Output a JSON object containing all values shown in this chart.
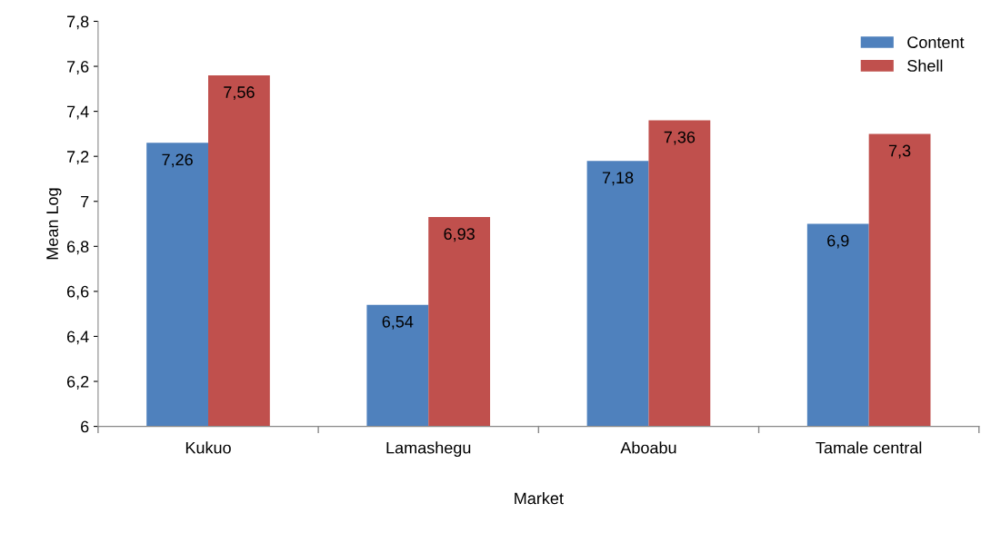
{
  "chart_data": {
    "type": "bar",
    "xlabel": "Market",
    "ylabel": "Mean Log",
    "categories": [
      "Kukuo",
      "Lamashegu",
      "Aboabu",
      "Tamale central"
    ],
    "series": [
      {
        "name": "Content",
        "color": "#4f81bd",
        "values": [
          7.26,
          6.54,
          7.18,
          6.9
        ],
        "value_labels": [
          "7,26",
          "6,54",
          "7,18",
          "6,9"
        ]
      },
      {
        "name": "Shell",
        "color": "#c0504d",
        "values": [
          7.56,
          6.93,
          7.36,
          7.3
        ],
        "value_labels": [
          "7,56",
          "6,93",
          "7,36",
          "7,3"
        ]
      }
    ],
    "ylim": [
      6,
      7.8
    ],
    "yticks": [
      {
        "value": 6,
        "label": "6"
      },
      {
        "value": 6.2,
        "label": "6,2"
      },
      {
        "value": 6.4,
        "label": "6,4"
      },
      {
        "value": 6.6,
        "label": "6,6"
      },
      {
        "value": 6.8,
        "label": "6,8"
      },
      {
        "value": 7,
        "label": "7"
      },
      {
        "value": 7.2,
        "label": "7,2"
      },
      {
        "value": 7.4,
        "label": "7,4"
      },
      {
        "value": 7.6,
        "label": "7,6"
      },
      {
        "value": 7.8,
        "label": "7,8"
      }
    ],
    "grid": false,
    "legend": "top right"
  }
}
